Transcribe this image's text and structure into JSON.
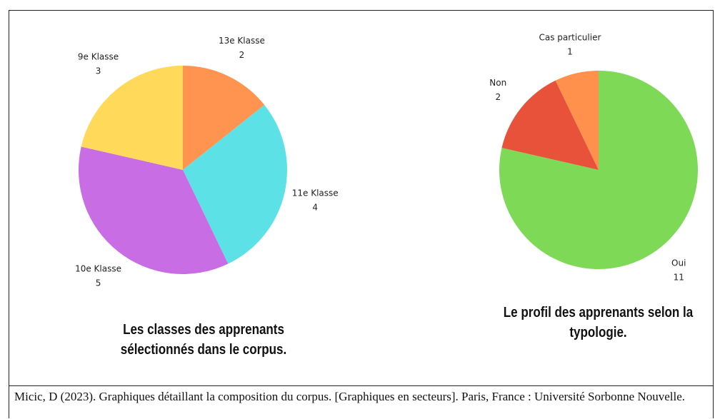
{
  "chart_data": [
    {
      "type": "pie",
      "title": "Les classes des apprenants sélectionnés dans le corpus.",
      "categories": [
        "13e Klasse",
        "11e Klasse",
        "10e Klasse",
        "9e Klasse"
      ],
      "values": [
        2,
        4,
        5,
        3
      ],
      "colors": [
        "#ff9350",
        "#5ce1e6",
        "#c86de3",
        "#ffd95a"
      ]
    },
    {
      "type": "pie",
      "title": "Le profil des apprenants selon la typologie.",
      "categories": [
        "Oui",
        "Non",
        "Cas particulier"
      ],
      "values": [
        11,
        2,
        1
      ],
      "colors": [
        "#7ed957",
        "#e8513a",
        "#ff914d"
      ]
    }
  ],
  "caption": "Micic, D (2023). Graphiques détaillant la composition du corpus. [Graphiques en secteurs]. Paris, France : Université Sorbonne Nouvelle."
}
